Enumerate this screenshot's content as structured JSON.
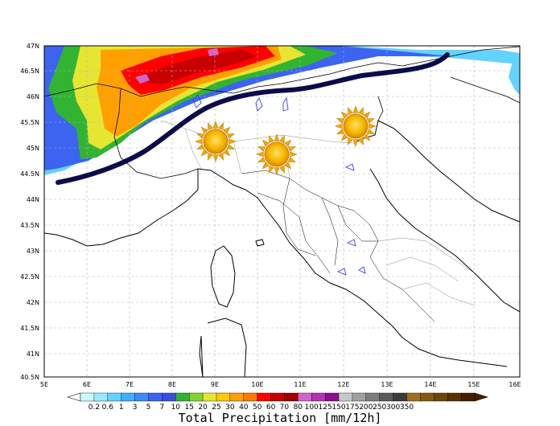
{
  "map": {
    "lat_labels": [
      "47N",
      "46.5N",
      "46N",
      "45.5N",
      "45N",
      "44.5N",
      "44N",
      "43.5N",
      "43N",
      "42.5N",
      "42N",
      "41.5N",
      "41N",
      "40.5N"
    ],
    "lon_labels": [
      "5E",
      "6E",
      "7E",
      "8E",
      "9E",
      "10E",
      "11E",
      "12E",
      "13E",
      "14E",
      "15E",
      "16E"
    ],
    "weather_symbols": [
      "sun-icon",
      "sun-icon",
      "sun-icon"
    ],
    "front_line_color": "#0b0b4a"
  },
  "colorbar": {
    "values": [
      "0.2",
      "0.6",
      "1",
      "3",
      "5",
      "7",
      "10",
      "15",
      "20",
      "25",
      "30",
      "40",
      "50",
      "60",
      "70",
      "80",
      "100",
      "125",
      "150",
      "175",
      "200",
      "250",
      "300",
      "350"
    ],
    "colors": [
      "#c8f8ff",
      "#96eaff",
      "#64d2ff",
      "#3cb0ff",
      "#3c8cf5",
      "#3c64f0",
      "#3c4be1",
      "#32b432",
      "#82d232",
      "#e6e632",
      "#ffc800",
      "#ffa000",
      "#ff7800",
      "#ff0000",
      "#c80000",
      "#a00000",
      "#d264c8",
      "#b432b4",
      "#8c0f8c",
      "#c8c8c8",
      "#a0a0a0",
      "#7d7d7d",
      "#5a5a5a",
      "#3c3c3c",
      "#a06e1e",
      "#825a14",
      "#6e460a",
      "#5a3200",
      "#461e00"
    ],
    "title": "Total Precipitation [mm/12h]"
  }
}
